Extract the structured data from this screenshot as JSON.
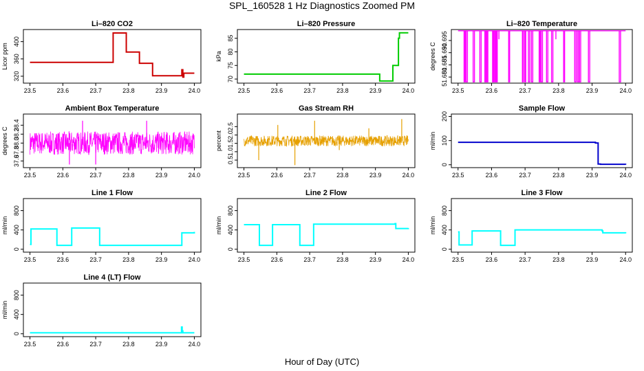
{
  "figure": {
    "title": "SPL_160528  1 Hz Diagnostics Zoomed PM",
    "xlabel": "Hour of Day (UTC)"
  },
  "chart_data": [
    {
      "type": "line",
      "title": "Li–820 CO2",
      "ylabel": "Licor ppm",
      "color": "#cc0000",
      "xlim": [
        23.48,
        24.02
      ],
      "ylim": [
        304,
        428
      ],
      "xticks": [
        "23.5",
        "23.6",
        "23.7",
        "23.8",
        "23.9",
        "24.0"
      ],
      "yticks": [
        "320",
        "360",
        "400"
      ],
      "style": "step",
      "x": [
        23.5,
        23.75,
        23.753,
        23.79,
        23.793,
        23.83,
        23.833,
        23.87,
        23.873,
        23.96,
        23.962,
        23.965,
        23.968,
        24.0
      ],
      "y": [
        352,
        352,
        420,
        420,
        376,
        376,
        350,
        350,
        321,
        321,
        335,
        318,
        327,
        327
      ]
    },
    {
      "type": "line",
      "title": "Li–820 Pressure",
      "ylabel": "kPa",
      "color": "#00cc00",
      "xlim": [
        23.48,
        24.02
      ],
      "ylim": [
        68.5,
        88.2
      ],
      "xticks": [
        "23.5",
        "23.6",
        "23.7",
        "23.8",
        "23.9",
        "24.0"
      ],
      "yticks": [
        "70",
        "75",
        "80",
        "85"
      ],
      "style": "step",
      "x": [
        23.5,
        23.91,
        23.913,
        23.95,
        23.953,
        23.97,
        23.973,
        24.0
      ],
      "y": [
        71.8,
        71.8,
        69.3,
        69.3,
        75,
        85,
        87.0,
        87.0
      ]
    },
    {
      "type": "line",
      "title": "Li–820 Temperature",
      "ylabel": "degrees C",
      "color": "#ff00ff",
      "xlim": [
        23.48,
        24.02
      ],
      "ylim": [
        51.6775,
        51.6995
      ],
      "xticks": [
        "23.5",
        "23.6",
        "23.7",
        "23.8",
        "23.9",
        "24.0"
      ],
      "yticks": [
        "51.680",
        "51.685",
        "51.690",
        "51.695"
      ],
      "style": "toggle",
      "base": 51.699,
      "low": 51.678,
      "drops": [
        [
          23.518,
          23.521
        ],
        [
          23.524,
          23.528
        ],
        [
          23.545,
          23.549
        ],
        [
          23.565,
          23.569
        ],
        [
          23.58,
          23.583
        ],
        [
          23.586,
          23.589
        ],
        [
          23.603,
          23.606
        ],
        [
          23.609,
          23.612
        ],
        [
          23.614,
          23.617
        ],
        [
          23.651,
          23.654
        ],
        [
          23.692,
          23.695
        ],
        [
          23.699,
          23.702
        ],
        [
          23.71,
          23.714
        ],
        [
          23.719,
          23.723
        ],
        [
          23.742,
          23.745
        ],
        [
          23.748,
          23.752
        ],
        [
          23.764,
          23.768
        ],
        [
          23.779,
          23.783
        ],
        [
          23.815,
          23.818
        ],
        [
          23.848,
          23.852
        ],
        [
          23.856,
          23.86
        ],
        [
          23.862,
          23.866
        ],
        [
          23.889,
          23.893
        ],
        [
          23.981,
          23.985
        ]
      ],
      "partial": [
        [
          23.622,
          51.6955
        ],
        [
          23.792,
          51.6955
        ]
      ]
    },
    {
      "type": "line",
      "title": "Ambient Box Temperature",
      "ylabel": "degrees C",
      "color": "#ff00ff",
      "xlim": [
        23.48,
        24.02
      ],
      "ylim": [
        37.45,
        38.65
      ],
      "xticks": [
        "23.5",
        "23.6",
        "23.7",
        "23.8",
        "23.9",
        "24.0"
      ],
      "yticks": [
        "37.6",
        "37.8",
        "38.0",
        "38.2",
        "38.4"
      ],
      "style": "noise",
      "mean": 38.0,
      "spread": 0.26,
      "spikes": [
        [
          23.7,
          37.52
        ],
        [
          23.62,
          37.52
        ],
        [
          23.855,
          38.5
        ],
        [
          23.66,
          38.5
        ]
      ]
    },
    {
      "type": "line",
      "title": "Gas Stream RH",
      "ylabel": "percent",
      "color": "#e6a000",
      "xlim": [
        23.48,
        24.02
      ],
      "ylim": [
        0.05,
        3.25
      ],
      "xticks": [
        "23.5",
        "23.6",
        "23.7",
        "23.8",
        "23.9",
        "24.0"
      ],
      "yticks": [
        "0.5",
        "1.0",
        "1.5",
        "2.0",
        "2.5"
      ],
      "style": "noise",
      "mean": 1.65,
      "spread": 0.32,
      "spikes": [
        [
          23.545,
          0.5
        ],
        [
          23.655,
          0.2
        ],
        [
          23.715,
          2.85
        ],
        [
          23.98,
          2.95
        ],
        [
          23.88,
          2.4
        ],
        [
          23.603,
          2.6
        ],
        [
          23.79,
          1.1
        ]
      ]
    },
    {
      "type": "line",
      "title": "Sample Flow",
      "ylabel": "ml/min",
      "color": "#0000cc",
      "xlim": [
        23.48,
        24.02
      ],
      "ylim": [
        -12,
        210
      ],
      "xticks": [
        "23.5",
        "23.6",
        "23.7",
        "23.8",
        "23.9",
        "24.0"
      ],
      "yticks": [
        "0",
        "100",
        "200"
      ],
      "style": "step",
      "x": [
        23.5,
        23.91,
        23.918,
        23.925,
        24.0
      ],
      "y": [
        93,
        90,
        3,
        2,
        0
      ]
    },
    {
      "type": "line",
      "title": "Line 1 Flow",
      "ylabel": "ml/min",
      "color": "#00ffff",
      "xlim": [
        23.48,
        24.02
      ],
      "ylim": [
        -60,
        1050
      ],
      "xticks": [
        "23.5",
        "23.6",
        "23.7",
        "23.8",
        "23.9",
        "24.0"
      ],
      "yticks": [
        "0",
        "400",
        "800"
      ],
      "style": "step",
      "x": [
        23.5,
        23.503,
        23.58,
        23.582,
        23.625,
        23.627,
        23.71,
        23.712,
        23.96,
        23.962,
        24.0
      ],
      "y": [
        100,
        420,
        420,
        80,
        80,
        440,
        440,
        80,
        80,
        340,
        360
      ]
    },
    {
      "type": "line",
      "title": "Line 2 Flow",
      "ylabel": "ml/min",
      "color": "#00ffff",
      "xlim": [
        23.48,
        24.02
      ],
      "ylim": [
        -60,
        1050
      ],
      "xticks": [
        "23.5",
        "23.6",
        "23.7",
        "23.8",
        "23.9",
        "24.0"
      ],
      "yticks": [
        "0",
        "400",
        "800"
      ],
      "style": "step",
      "x": [
        23.5,
        23.545,
        23.547,
        23.585,
        23.587,
        23.668,
        23.67,
        23.71,
        23.712,
        23.96,
        23.962,
        24.0
      ],
      "y": [
        510,
        510,
        80,
        80,
        510,
        510,
        80,
        80,
        520,
        530,
        430,
        440
      ]
    },
    {
      "type": "line",
      "title": "Line 3 Flow",
      "ylabel": "ml/min",
      "color": "#00ffff",
      "xlim": [
        23.48,
        24.02
      ],
      "ylim": [
        -60,
        1050
      ],
      "xticks": [
        "23.5",
        "23.6",
        "23.7",
        "23.8",
        "23.9",
        "24.0"
      ],
      "yticks": [
        "0",
        "400",
        "800"
      ],
      "style": "step",
      "x": [
        23.5,
        23.503,
        23.54,
        23.542,
        23.625,
        23.627,
        23.668,
        23.67,
        23.93,
        23.932,
        24.0
      ],
      "y": [
        360,
        90,
        90,
        380,
        380,
        80,
        80,
        400,
        380,
        340,
        330
      ]
    },
    {
      "type": "line",
      "title": "Line 4 (LT) Flow",
      "ylabel": "ml/min",
      "color": "#00ffff",
      "xlim": [
        23.48,
        24.02
      ],
      "ylim": [
        -60,
        1050
      ],
      "xticks": [
        "23.5",
        "23.6",
        "23.7",
        "23.8",
        "23.9",
        "24.0"
      ],
      "yticks": [
        "0",
        "400",
        "800"
      ],
      "style": "step",
      "x": [
        23.5,
        23.96,
        23.961,
        23.963,
        23.965,
        24.0
      ],
      "y": [
        20,
        20,
        140,
        60,
        20,
        20
      ]
    }
  ]
}
